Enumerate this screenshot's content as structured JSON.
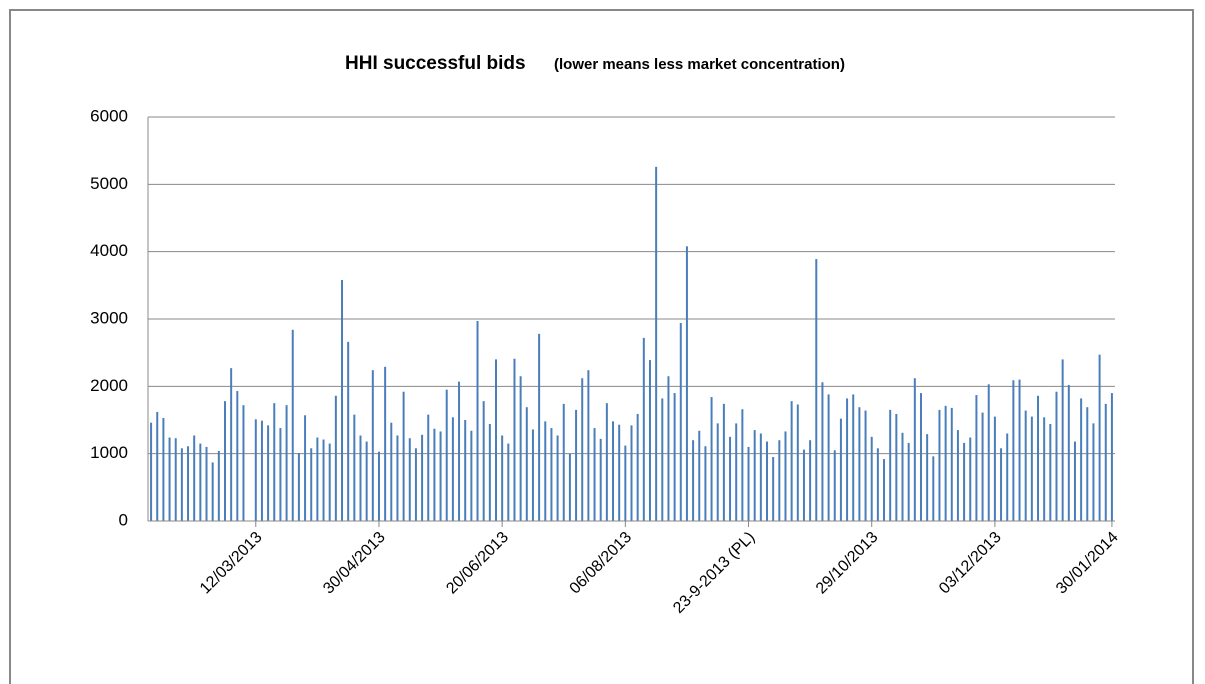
{
  "chart_data": {
    "type": "bar",
    "title": "HHI successful bids",
    "subtitle": "(lower means less market concentration)",
    "categories": [
      null,
      null,
      null,
      null,
      null,
      null,
      null,
      null,
      null,
      null,
      null,
      null,
      null,
      null,
      null,
      null,
      null,
      "12/03/2013",
      null,
      null,
      null,
      null,
      null,
      null,
      null,
      null,
      null,
      null,
      null,
      null,
      null,
      null,
      null,
      null,
      null,
      null,
      null,
      "30/04/2013",
      null,
      null,
      null,
      null,
      null,
      null,
      null,
      null,
      null,
      null,
      null,
      null,
      null,
      null,
      null,
      null,
      null,
      null,
      null,
      "20/06/2013",
      null,
      null,
      null,
      null,
      null,
      null,
      null,
      null,
      null,
      null,
      null,
      null,
      null,
      null,
      null,
      null,
      null,
      null,
      null,
      "06/08/2013",
      null,
      null,
      null,
      null,
      null,
      null,
      null,
      null,
      null,
      null,
      null,
      null,
      null,
      null,
      null,
      null,
      null,
      null,
      null,
      "23-9-2013 (PL)",
      null,
      null,
      null,
      null,
      null,
      null,
      null,
      null,
      null,
      null,
      null,
      null,
      null,
      null,
      null,
      null,
      null,
      null,
      null,
      "29/10/2013",
      null,
      null,
      null,
      null,
      null,
      null,
      null,
      null,
      null,
      null,
      null,
      null,
      null,
      null,
      null,
      null,
      null,
      null,
      null,
      "03/12/2013",
      null,
      null,
      null,
      null,
      null,
      null,
      null,
      null,
      null,
      null,
      null,
      null,
      null,
      null,
      null,
      null,
      null,
      null,
      "30/01/2014"
    ],
    "values": [
      1460,
      1620,
      1530,
      1240,
      1230,
      1080,
      1110,
      1270,
      1150,
      1100,
      870,
      1040,
      1780,
      2270,
      1930,
      1720,
      null,
      1510,
      1490,
      1420,
      1750,
      1380,
      1720,
      2840,
      1010,
      1570,
      1080,
      1240,
      1210,
      1150,
      1860,
      3580,
      2660,
      1580,
      1270,
      1180,
      2240,
      1030,
      2290,
      1460,
      1270,
      1920,
      1230,
      1080,
      1280,
      1580,
      1370,
      1330,
      1950,
      1540,
      2070,
      1500,
      1340,
      2970,
      1780,
      1440,
      2400,
      1270,
      1150,
      2410,
      2150,
      1690,
      1360,
      2780,
      1480,
      1380,
      1270,
      1740,
      1000,
      1650,
      2120,
      2240,
      1380,
      1220,
      1750,
      1480,
      1430,
      1120,
      1420,
      1590,
      2720,
      2390,
      5260,
      1820,
      2150,
      1900,
      2940,
      4080,
      1200,
      1340,
      1110,
      1840,
      1450,
      1740,
      1250,
      1450,
      1660,
      1100,
      1350,
      1300,
      1180,
      950,
      1200,
      1330,
      1780,
      1730,
      1060,
      1200,
      3890,
      2060,
      1880,
      1050,
      1520,
      1820,
      1880,
      1690,
      1640,
      1250,
      1080,
      920,
      1650,
      1590,
      1310,
      1160,
      2120,
      1900,
      1290,
      960,
      1650,
      1710,
      1680,
      1350,
      1160,
      1240,
      1870,
      1610,
      2030,
      1550,
      1080,
      1300,
      2090,
      2100,
      1640,
      1550,
      1860,
      1540,
      1440,
      1920,
      2400,
      2020,
      1180,
      1820,
      1690,
      1450,
      2470,
      1740,
      1900
    ],
    "color": "#4a7ebb",
    "ylim": [
      0,
      6000
    ],
    "yticks": [
      0,
      1000,
      2000,
      3000,
      4000,
      5000,
      6000
    ],
    "grid": true
  }
}
